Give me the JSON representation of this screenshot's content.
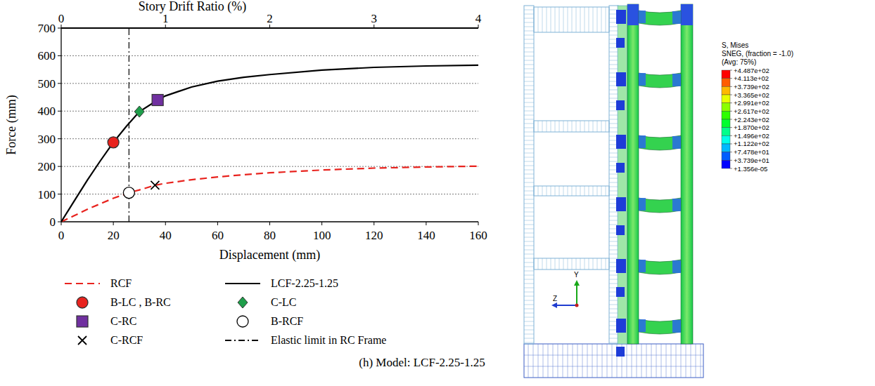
{
  "chart_data": {
    "type": "line",
    "xlabel": "Displacement (mm)",
    "ylabel": "Force (mm)",
    "x2label": "Story Drift Ratio (%)",
    "xlim": [
      0,
      160
    ],
    "xticks": [
      0,
      20,
      40,
      60,
      80,
      100,
      120,
      140,
      160
    ],
    "x2lim": [
      0,
      4
    ],
    "x2ticks": [
      0,
      1,
      2,
      3,
      4
    ],
    "ylim": [
      0,
      700
    ],
    "yticks": [
      0,
      100,
      200,
      300,
      400,
      500,
      600,
      700
    ],
    "grid": true,
    "legend": "bottom",
    "series": [
      {
        "name": "RCF",
        "type": "line",
        "color": "#e8231e",
        "line_style": "dashed",
        "x": [
          0,
          5,
          10,
          15,
          20,
          26,
          30,
          36,
          40,
          50,
          60,
          70,
          80,
          100,
          120,
          140,
          160
        ],
        "values": [
          0,
          22,
          45,
          65,
          85,
          105,
          115,
          132,
          139,
          152,
          162,
          170,
          177,
          187,
          194,
          198,
          201
        ]
      },
      {
        "name": "LCF-2.25-1.25",
        "type": "line",
        "color": "#000000",
        "line_style": "solid",
        "x": [
          0,
          5,
          10,
          15,
          20,
          25,
          30,
          37,
          40,
          50,
          60,
          70,
          80,
          100,
          120,
          140,
          160
        ],
        "values": [
          0,
          75,
          150,
          220,
          287,
          345,
          398,
          440,
          455,
          487,
          508,
          522,
          532,
          548,
          558,
          563,
          566
        ]
      },
      {
        "name": "B-LC , B-RC",
        "type": "scatter",
        "color": "#e8231e",
        "marker": "circle",
        "x": [
          20
        ],
        "values": [
          287
        ]
      },
      {
        "name": "C-LC",
        "type": "scatter",
        "color": "#1e9e4a",
        "marker": "diamond",
        "x": [
          30
        ],
        "values": [
          398
        ]
      },
      {
        "name": "C-RC",
        "type": "scatter",
        "color": "#7030a0",
        "marker": "square",
        "x": [
          37
        ],
        "values": [
          440
        ]
      },
      {
        "name": "B-RCF",
        "type": "scatter",
        "color": "#000000",
        "marker": "open-circle",
        "x": [
          26
        ],
        "values": [
          105
        ]
      },
      {
        "name": "C-RCF",
        "type": "scatter",
        "color": "#000000",
        "marker": "x",
        "x": [
          36
        ],
        "values": [
          132
        ]
      },
      {
        "name": "Elastic limit in RC Frame",
        "type": "vline",
        "color": "#000000",
        "line_style": "dashdot",
        "x": [
          26
        ]
      }
    ]
  },
  "caption": "(h) Model: LCF-2.25-1.25",
  "contour": {
    "legend_title": "S, Mises",
    "legend_subtitle": "SNEG, (fraction = -1.0)",
    "legend_avg": "(Avg: 75%)",
    "axis_labels": [
      "Y",
      "Z"
    ],
    "colorbar": {
      "values": [
        448.7,
        411.3,
        373.9,
        336.5,
        299.1,
        261.7,
        224.3,
        187.0,
        149.6,
        112.2,
        74.78,
        37.39,
        1.356e-05
      ],
      "value_labels": [
        "+4.487e+02",
        "+4.113e+02",
        "+3.739e+02",
        "+3.365e+02",
        "+2.991e+02",
        "+2.617e+02",
        "+2.243e+02",
        "+1.870e+02",
        "+1.496e+02",
        "+1.122e+02",
        "+7.478e+01",
        "+3.739e+01",
        "+1.356e-05"
      ],
      "colors": [
        "#ff0000",
        "#ff5d00",
        "#ffb900",
        "#e8ff00",
        "#8bff00",
        "#2eff00",
        "#00ff2e",
        "#00ff8b",
        "#00ffe8",
        "#00b9ff",
        "#005dff",
        "#0000ff"
      ]
    }
  }
}
